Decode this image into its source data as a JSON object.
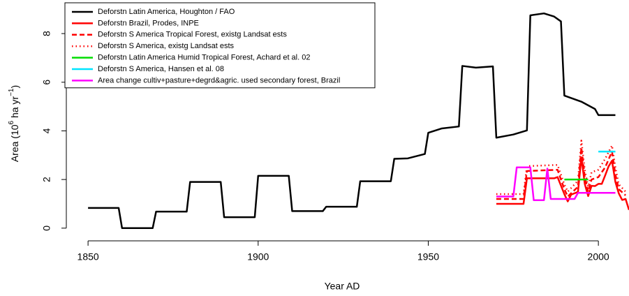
{
  "chart_data": {
    "type": "line",
    "xlabel": "Year AD",
    "ylabel": [
      "Area (10",
      "6",
      " ha yr",
      "−1",
      ")"
    ],
    "xlim": [
      1843,
      2009
    ],
    "ylim": [
      -0.35,
      9.18
    ],
    "xticks": [
      1850,
      1900,
      1950,
      2000
    ],
    "yticks": [
      0,
      2,
      4,
      6,
      8
    ],
    "legend": "top-left",
    "series": [
      {
        "name": "Deforstn Latin America, Houghton / FAO",
        "color": "#000000",
        "dash": "solid",
        "x": [
          1850,
          1859,
          1860,
          1869,
          1870,
          1879,
          1880,
          1889,
          1890,
          1899,
          1900,
          1909,
          1910,
          1919,
          1920,
          1929,
          1930,
          1939,
          1940,
          1944,
          1949,
          1950,
          1954,
          1959,
          1960,
          1964,
          1969,
          1970,
          1975,
          1979,
          1980,
          1984,
          1987,
          1989,
          1990,
          1995,
          1999,
          2000,
          2005
        ],
        "values": [
          0.83,
          0.83,
          0,
          0,
          0.68,
          0.68,
          1.9,
          1.9,
          0.45,
          0.45,
          2.15,
          2.15,
          0.7,
          0.7,
          0.88,
          0.88,
          1.93,
          1.93,
          2.85,
          2.87,
          3.05,
          3.92,
          4.1,
          4.18,
          6.67,
          6.6,
          6.65,
          3.72,
          3.85,
          4.02,
          8.75,
          8.83,
          8.7,
          8.5,
          5.45,
          5.2,
          4.9,
          4.65,
          4.65
        ]
      },
      {
        "name": "Deforstn Brazil, Prodes, INPE",
        "color": "#ff0000",
        "dash": "solid",
        "x": [
          1970,
          1978,
          1979,
          1987,
          1988,
          1990,
          1991,
          1992,
          1994,
          1995,
          1996,
          1997,
          1998,
          1999,
          2000,
          2001,
          2002,
          2003,
          2004,
          2005,
          2006,
          2007,
          2008,
          2009
        ],
        "values": [
          1.0,
          1.0,
          2.05,
          2.05,
          2.1,
          1.4,
          1.1,
          1.38,
          1.49,
          2.91,
          1.82,
          1.32,
          1.74,
          1.73,
          1.82,
          1.82,
          2.17,
          2.54,
          2.77,
          1.9,
          1.43,
          1.16,
          1.2,
          0.75
        ]
      },
      {
        "name": "Deforstn S America Tropical Forest, existg Landsat ests",
        "color": "#ff0000",
        "dash": "dashed",
        "x": [
          1970,
          1978,
          1979,
          1988,
          1990,
          1991,
          1994,
          1995,
          1996,
          1997,
          1998,
          2000,
          2002,
          2004,
          2005,
          2006,
          2008
        ],
        "values": [
          1.2,
          1.2,
          2.35,
          2.4,
          1.6,
          1.3,
          1.7,
          3.3,
          2.1,
          1.5,
          2.0,
          2.1,
          2.5,
          3.15,
          2.2,
          1.6,
          1.35
        ]
      },
      {
        "name": "Deforstn S America, existg Landsat ests",
        "color": "#ff0000",
        "dash": "dotted",
        "x": [
          1970,
          1978,
          1979,
          1988,
          1990,
          1991,
          1994,
          1995,
          1996,
          1997,
          1998,
          2000,
          2002,
          2004,
          2005,
          2006,
          2008
        ],
        "values": [
          1.4,
          1.4,
          2.55,
          2.6,
          1.8,
          1.5,
          1.95,
          3.6,
          2.4,
          1.7,
          2.3,
          2.4,
          2.85,
          3.4,
          2.5,
          1.8,
          1.5
        ]
      },
      {
        "name": "Deforstn Latin America Humid Tropical Forest, Achard et al. 02",
        "color": "#00dd00",
        "dash": "solid",
        "x": [
          1990,
          1997
        ],
        "values": [
          2.0,
          2.0
        ]
      },
      {
        "name": "Deforstn S America, Hansen et al. 08",
        "color": "#00e5ff",
        "dash": "solid",
        "x": [
          2000,
          2005
        ],
        "values": [
          3.15,
          3.15
        ]
      },
      {
        "name": "Area change cultiv+pasture+degrd&agric. used secondary forest, Brazil",
        "color": "#ff00ff",
        "dash": "solid",
        "x": [
          1970,
          1975,
          1976,
          1980,
          1981,
          1984,
          1985,
          1986,
          1993,
          1994,
          2005
        ],
        "values": [
          1.3,
          1.3,
          2.5,
          2.5,
          1.15,
          1.15,
          2.45,
          1.2,
          1.2,
          1.45,
          1.45
        ]
      }
    ]
  }
}
